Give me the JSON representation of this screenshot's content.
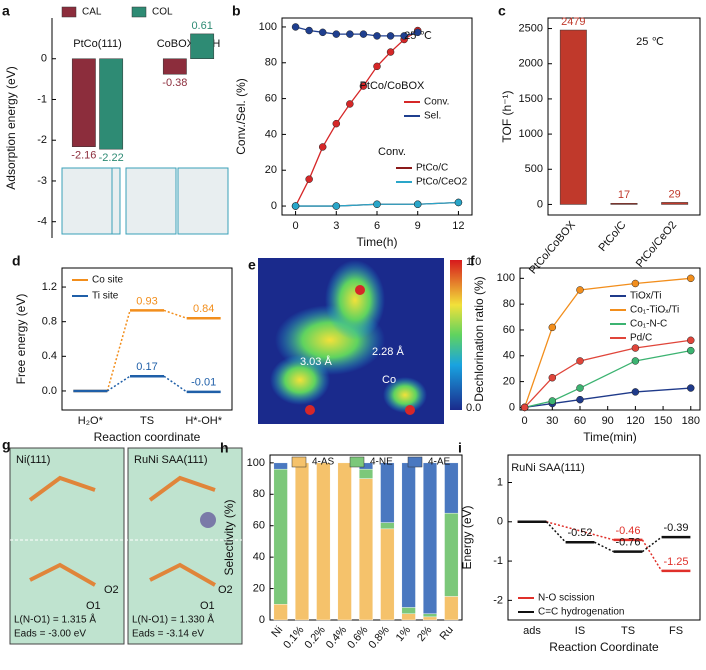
{
  "chart_data": [
    {
      "label": "a",
      "type": "bar",
      "ylabel": "Adsorption energy (eV)",
      "categories": [
        "PtCo(111)",
        "CoBOX-4OH"
      ],
      "series": [
        {
          "name": "CAL",
          "color": "#8c2d3c",
          "values": [
            -2.16,
            -0.38
          ]
        },
        {
          "name": "COL",
          "color": "#2e8b74",
          "values": [
            -2.22,
            0.61
          ]
        }
      ],
      "ylim": [
        -4.4,
        1.0
      ],
      "yticks": [
        -4,
        -3,
        -2,
        -1,
        0
      ],
      "legend": "upper left"
    },
    {
      "label": "b",
      "type": "line",
      "xlabel": "Time(h)",
      "ylabel": "Conv./Sel. (%)",
      "xlim": [
        -1,
        13
      ],
      "xticks": [
        0,
        3,
        6,
        9,
        12
      ],
      "ylim": [
        -5,
        105
      ],
      "yticks": [
        0,
        20,
        40,
        60,
        80,
        100
      ],
      "annotations": [
        "25 ℃",
        "PtCo/CoBOX",
        "Conv."
      ],
      "series": [
        {
          "name": "Conv.",
          "color": "#d62728",
          "x": [
            0,
            1,
            2,
            3,
            4,
            5,
            6,
            7,
            8,
            9
          ],
          "values": [
            0,
            15,
            33,
            46,
            57,
            67,
            78,
            86,
            93,
            98
          ]
        },
        {
          "name": "Sel.",
          "color": "#1f3f8f",
          "x": [
            0,
            1,
            2,
            3,
            4,
            5,
            6,
            7,
            8,
            9
          ],
          "values": [
            100,
            98,
            97,
            96,
            96,
            96,
            95,
            95,
            95,
            97
          ]
        },
        {
          "name": "PtCo/C",
          "color": "#8b1a1a",
          "x": [
            0,
            3,
            6,
            9,
            12
          ],
          "values": [
            0,
            0,
            1,
            1,
            2
          ]
        },
        {
          "name": "PtCo/CeO2",
          "color": "#2aa6c9",
          "x": [
            0,
            3,
            6,
            9,
            12
          ],
          "values": [
            0,
            0,
            1,
            1,
            2
          ]
        }
      ]
    },
    {
      "label": "c",
      "type": "bar",
      "ylabel": "TOF (h⁻¹)",
      "categories": [
        "PtCo/CoBOX",
        "PtCo/C",
        "PtCo/CeO2"
      ],
      "values": [
        2479,
        17,
        29
      ],
      "color": "#c0392b",
      "ylim": [
        -150,
        2650
      ],
      "yticks": [
        0,
        500,
        1000,
        1500,
        2000,
        2500
      ],
      "annotations": [
        "25 ℃"
      ]
    },
    {
      "label": "d",
      "type": "energy",
      "xlabel": "Reaction coordinate",
      "ylabel": "Free energy (eV)",
      "categories": [
        "H₂O*",
        "TS",
        "H*-OH*"
      ],
      "ylim": [
        -0.22,
        1.42
      ],
      "yticks": [
        {
          "value": 0,
          "label": "0.0"
        },
        0.4,
        0.8,
        1.2
      ],
      "legend": "upper left",
      "series": [
        {
          "name": "Co site",
          "color": "#f28e1c",
          "values": [
            0,
            0.93,
            0.84
          ],
          "value_labels": [
            null,
            "0.93",
            "0.84"
          ]
        },
        {
          "name": "Ti site",
          "color": "#1f5fa8",
          "values": [
            0,
            0.17,
            -0.01
          ],
          "value_labels": [
            null,
            "0.17",
            "-0.01"
          ]
        }
      ]
    },
    {
      "label": "f",
      "type": "line",
      "xlabel": "Time(min)",
      "ylabel": "Dechlorination ratio (%)",
      "xlim": [
        -5,
        190
      ],
      "xticks": [
        0,
        30,
        60,
        90,
        120,
        150,
        180
      ],
      "ylim": [
        -2,
        108
      ],
      "yticks": [
        0,
        20,
        40,
        60,
        80,
        100
      ],
      "legend": "upper right",
      "series": [
        {
          "name": "TiOx/Ti",
          "color": "#1f3a8a",
          "x": [
            0,
            30,
            60,
            120,
            180
          ],
          "values": [
            0,
            3,
            6,
            12,
            15
          ]
        },
        {
          "name": "Co₁-TiOₓ/Ti",
          "color": "#f28e1c",
          "x": [
            0,
            30,
            60,
            120,
            180
          ],
          "values": [
            0,
            62,
            91,
            96,
            100
          ]
        },
        {
          "name": "Co₁-N-C",
          "color": "#3cb371",
          "x": [
            0,
            30,
            60,
            120,
            180
          ],
          "values": [
            0,
            5,
            15,
            36,
            44
          ]
        },
        {
          "name": "Pd/C",
          "color": "#e0453a",
          "x": [
            0,
            30,
            60,
            120,
            180
          ],
          "values": [
            0,
            23,
            36,
            46,
            52
          ]
        }
      ]
    },
    {
      "label": "h",
      "type": "stacked_bar",
      "ylabel": "Selectivity (%)",
      "categories": [
        "Ni",
        "0.1%",
        "0.2%",
        "0.4%",
        "0.6%",
        "0.8%",
        "1%",
        "2%",
        "Ru"
      ],
      "ylim": [
        0,
        105
      ],
      "yticks": [
        0,
        20,
        40,
        60,
        80,
        100
      ],
      "legend": "upper center",
      "series": [
        {
          "name": "4-AS",
          "color": "#f5c26b",
          "values": [
            10,
            100,
            100,
            100,
            90,
            58,
            4,
            2,
            15
          ]
        },
        {
          "name": "4-NE",
          "color": "#7cc87a",
          "values": [
            86,
            0,
            0,
            0,
            6,
            4,
            4,
            2,
            53
          ]
        },
        {
          "name": "4-AE",
          "color": "#4a78c0",
          "values": [
            4,
            0,
            0,
            0,
            4,
            38,
            92,
            96,
            32
          ]
        }
      ]
    },
    {
      "label": "i",
      "type": "energy",
      "xlabel": "Reaction Coordinate",
      "ylabel": "Energy (eV)",
      "categories": [
        "ads",
        "IS",
        "TS",
        "FS"
      ],
      "ylim": [
        -2.5,
        1.7
      ],
      "yticks": [
        -2,
        -1,
        0,
        1
      ],
      "annotations": [
        "RuNi SAA(111)"
      ],
      "legend": "lower left",
      "series": [
        {
          "name": "N-O scission",
          "color": "#e0302a",
          "values": [
            0,
            null,
            -0.46,
            -1.25
          ],
          "value_labels": [
            null,
            null,
            "-0.46",
            "-1.25"
          ]
        },
        {
          "name": "C=C hydrogenation",
          "color": "#111111",
          "values": [
            0,
            -0.52,
            -0.76,
            -0.39
          ],
          "value_labels": [
            null,
            "-0.52",
            "-0.76",
            "-0.39"
          ]
        }
      ]
    }
  ],
  "panel_e": {
    "label": "e",
    "colorbar_ticks": [
      "1.0",
      "0.0"
    ],
    "annotations": [
      "3.03 Å",
      "2.28 Å",
      "Co"
    ]
  },
  "panel_g": {
    "label": "g",
    "titles": [
      "Ni(111)",
      "RuNi SAA(111)"
    ],
    "atoms": [
      "O2",
      "O1",
      "O2",
      "O1"
    ],
    "bond_lengths": [
      "L(N-O1) = 1.315 Å",
      "L(N-O1) = 1.330 Å"
    ],
    "energies": [
      "Eads = -3.00 eV",
      "Eads = -3.14 eV"
    ]
  }
}
